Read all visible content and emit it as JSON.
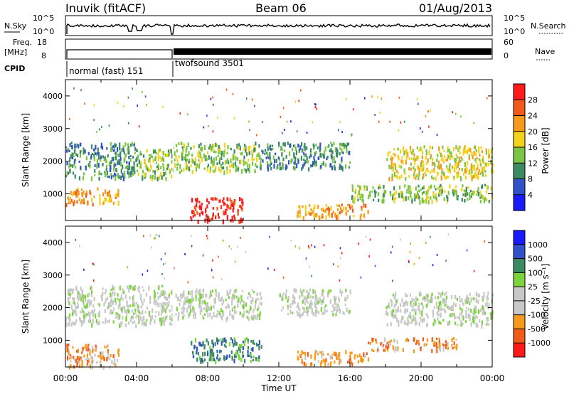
{
  "header": {
    "station": "Inuvik (fitACF)",
    "beam": "Beam 06",
    "date": "01/Aug/2013"
  },
  "strip_labels": {
    "nsky": "N.Sky",
    "nsearch": "N.Search",
    "freq_line1": "Freq.",
    "freq_line2": "[MHz]",
    "nave": "Nave",
    "cpid": "CPID"
  },
  "strip_ticks": {
    "noise_top": "10^5",
    "noise_bottom": "10^0",
    "noise_right_top": "10^5",
    "noise_right_bottom": "10^0",
    "freq_top": "18",
    "freq_bottom": "8",
    "nave_top": "60",
    "nave_bottom": "0"
  },
  "cpid_segments": [
    {
      "label": "normal (fast) 151",
      "start_hour": 0,
      "end_hour": 6
    },
    {
      "label": "twofsound 3501",
      "start_hour": 6,
      "end_hour": 24
    }
  ],
  "colors": {
    "power": [
      "#1a1aff",
      "#2f52c8",
      "#3c8a62",
      "#7cc443",
      "#f2d21a",
      "#f79a1c",
      "#f25a1a",
      "#ff1a1a"
    ],
    "velocity": [
      "#ff1a1a",
      "#f25a1a",
      "#f79a1c",
      "#c8c8c8",
      "#c8c8c8",
      "#7cd43c",
      "#3c8a62",
      "#2f52c8",
      "#1a1aff"
    ]
  },
  "chart_data": [
    {
      "type": "heatmap",
      "panel": "power",
      "xlabel": "",
      "ylabel": "Slant Range [km]",
      "x_ticks": [
        "00:00",
        "04:00",
        "08:00",
        "12:00",
        "16:00",
        "20:00",
        "00:00"
      ],
      "xlim_hours": [
        0,
        24
      ],
      "y_ticks": [
        "1000",
        "2000",
        "3000",
        "4000"
      ],
      "ylim": [
        180,
        4500
      ],
      "colorbar": {
        "label": "Power [dB]",
        "ticks": [
          "4",
          "8",
          "12",
          "16",
          "20",
          "24",
          "28"
        ],
        "range": [
          0,
          32
        ]
      },
      "bands": [
        {
          "start_hour": 0,
          "end_hour": 4,
          "range_low": 1500,
          "range_high": 2600,
          "level": 2
        },
        {
          "start_hour": 4,
          "end_hour": 6,
          "range_low": 1500,
          "range_high": 2400,
          "level": 3
        },
        {
          "start_hour": 0,
          "end_hour": 3,
          "range_low": 700,
          "range_high": 1200,
          "level": 5
        },
        {
          "start_hour": 6,
          "end_hour": 11,
          "range_low": 1700,
          "range_high": 2600,
          "level": 3
        },
        {
          "start_hour": 7,
          "end_hour": 10,
          "range_low": 200,
          "range_high": 900,
          "level": 7
        },
        {
          "start_hour": 11,
          "end_hour": 16,
          "range_low": 1800,
          "range_high": 2600,
          "level": 2
        },
        {
          "start_hour": 13,
          "end_hour": 17,
          "range_low": 300,
          "range_high": 700,
          "level": 5
        },
        {
          "start_hour": 16,
          "end_hour": 24,
          "range_low": 800,
          "range_high": 1300,
          "level": 3
        },
        {
          "start_hour": 18,
          "end_hour": 24,
          "range_low": 1500,
          "range_high": 2500,
          "level": 4
        }
      ]
    },
    {
      "type": "heatmap",
      "panel": "velocity",
      "xlabel": "Time UT",
      "ylabel": "Slant Range [km]",
      "x_ticks": [
        "00:00",
        "04:00",
        "08:00",
        "12:00",
        "16:00",
        "20:00",
        "00:00"
      ],
      "xlim_hours": [
        0,
        24
      ],
      "y_ticks": [
        "1000",
        "2000",
        "3000",
        "4000"
      ],
      "ylim": [
        180,
        4500
      ],
      "colorbar": {
        "label": "Velocity [m s⁻¹]",
        "ticks": [
          "1000",
          "500",
          "100",
          "25",
          "-25",
          "-100",
          "-500",
          "-1000"
        ]
      },
      "bands": [
        {
          "start_hour": 0,
          "end_hour": 6,
          "range_low": 1500,
          "range_high": 2700,
          "level": 4
        },
        {
          "start_hour": 0,
          "end_hour": 3,
          "range_low": 200,
          "range_high": 900,
          "level": 2
        },
        {
          "start_hour": 6,
          "end_hour": 11,
          "range_low": 1700,
          "range_high": 2600,
          "level": 4
        },
        {
          "start_hour": 7,
          "end_hour": 11,
          "range_low": 400,
          "range_high": 1100,
          "level": 6
        },
        {
          "start_hour": 12,
          "end_hour": 16,
          "range_low": 1800,
          "range_high": 2600,
          "level": 4
        },
        {
          "start_hour": 13,
          "end_hour": 17,
          "range_low": 300,
          "range_high": 700,
          "level": 2
        },
        {
          "start_hour": 17,
          "end_hour": 22,
          "range_low": 700,
          "range_high": 1100,
          "level": 2
        },
        {
          "start_hour": 18,
          "end_hour": 24,
          "range_low": 1500,
          "range_high": 2500,
          "level": 4
        }
      ]
    }
  ]
}
